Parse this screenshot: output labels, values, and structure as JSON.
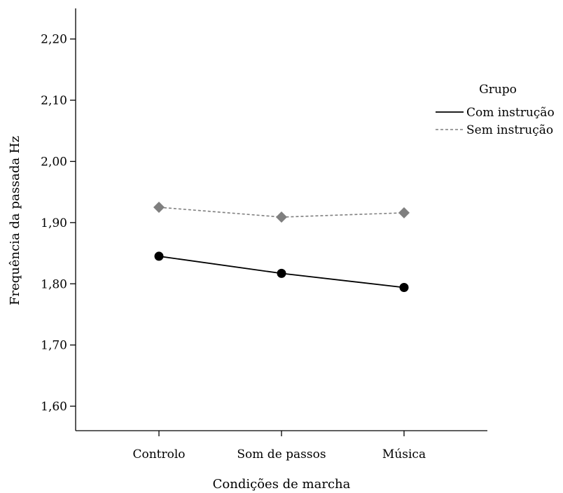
{
  "chart_data": {
    "type": "line",
    "categories": [
      "Controlo",
      "Som de passos",
      "Música"
    ],
    "xlabel": "Condições de marcha",
    "ylabel": "Frequência da passada Hz",
    "ylim": [
      1.56,
      2.25
    ],
    "yticks": [
      1.6,
      1.7,
      1.8,
      1.9,
      2.0,
      2.1,
      2.2
    ],
    "ytick_labels": [
      "1,60",
      "1,70",
      "1,80",
      "1,90",
      "2,00",
      "2,10",
      "2,20"
    ],
    "grid": false,
    "legend": {
      "title": "Grupo",
      "placement": "right"
    },
    "series": [
      {
        "name": "Com instrução",
        "values": [
          1.845,
          1.817,
          1.794
        ],
        "color": "#000000",
        "line_style": "solid",
        "marker": "circle"
      },
      {
        "name": "Sem instrução",
        "values": [
          1.925,
          1.909,
          1.916
        ],
        "color": "#7f7f7f",
        "line_style": "dashed",
        "marker": "diamond"
      }
    ]
  }
}
